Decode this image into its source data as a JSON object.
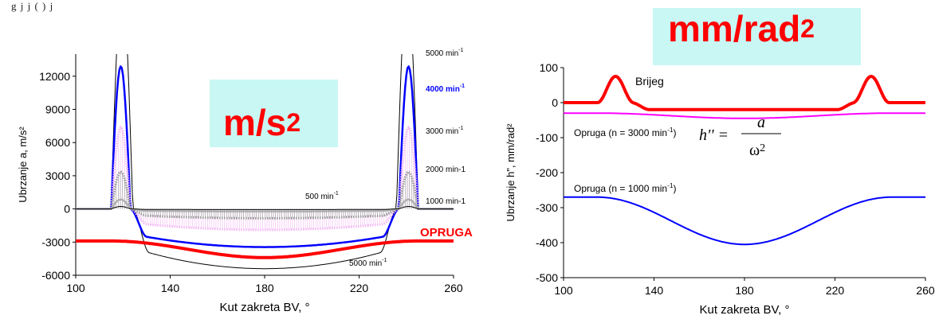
{
  "page": {
    "top_caption": "g j      j                 ( )                    j"
  },
  "chart_data": [
    {
      "type": "line",
      "title": "m/s²",
      "title_main": "m/s",
      "title_sup": "2",
      "title_color": "#ff0000",
      "title_box_color": "#c8f7f4",
      "xlabel": "Kut zakreta BV, °",
      "ylabel": "Ubrzanje a, m/s²",
      "xlim": [
        100,
        260
      ],
      "ylim": [
        -6000,
        14000
      ],
      "xticks": [
        100,
        140,
        180,
        220,
        260
      ],
      "yticks": [
        -6000,
        -3000,
        0,
        3000,
        6000,
        9000,
        12000
      ],
      "grid": false,
      "series": [
        {
          "name": "5000 min⁻¹",
          "label_main": "5000 min",
          "label_sup": "-1",
          "color": "#000000",
          "rise": [
            115,
            124
          ],
          "fall": [
            236,
            245
          ],
          "peak": 20000,
          "trough": -5400,
          "clip": [
            126,
            233
          ],
          "style": "thin"
        },
        {
          "name": "4000 min⁻¹",
          "label_main": "4000 min",
          "label_sup": "-1",
          "color": "#0000ff",
          "rise": [
            115,
            123
          ],
          "fall": [
            237,
            245
          ],
          "peak": 12900,
          "trough": -3450,
          "style": "solid"
        },
        {
          "name": "3000 min⁻¹",
          "label_main": "3000 min",
          "label_sup": "-1",
          "color": "#f2b8f2",
          "rise": [
            115,
            123
          ],
          "fall": [
            237,
            245
          ],
          "peak": 7400,
          "trough": -1900,
          "style": "hatch"
        },
        {
          "name": "2000 min-1",
          "label_main": "2000 min-1",
          "label_sup": "",
          "color": "#9a9a9a",
          "rise": [
            115,
            123
          ],
          "fall": [
            237,
            245
          ],
          "peak": 3350,
          "trough": -850,
          "style": "hatch"
        },
        {
          "name": "1000 min-1",
          "label_main": "1000 min-1",
          "label_sup": "",
          "color": "#b0b0b0",
          "rise": [
            115,
            123
          ],
          "fall": [
            237,
            245
          ],
          "peak": 850,
          "trough": -230,
          "style": "solid"
        },
        {
          "name": "500 min⁻¹",
          "label_main": "500 min",
          "label_sup": "-1",
          "color": "#000000",
          "rise": [
            115,
            123
          ],
          "fall": [
            237,
            245
          ],
          "peak": 220,
          "trough": -60,
          "style": "thin"
        },
        {
          "name": "OPRUGA",
          "color": "#ff0000",
          "type": "spring",
          "base": -2900,
          "trough": -4400,
          "style": "thick"
        }
      ]
    },
    {
      "type": "line",
      "title": "mm/rad²",
      "title_main": "mm/rad",
      "title_sup": "2",
      "title_color": "#ff0000",
      "title_box_color": "#c8f7f4",
      "xlabel": "Kut zakreta BV, °",
      "ylabel": "Ubrzanje h\", mm/rad²",
      "xlim": [
        100,
        260
      ],
      "ylim": [
        -500,
        100
      ],
      "xticks": [
        100,
        140,
        180,
        220,
        260
      ],
      "yticks": [
        -500,
        -400,
        -300,
        -200,
        -100,
        0,
        100
      ],
      "grid": false,
      "formula": "h'' = a / ω²",
      "series": [
        {
          "name": "Brijeg",
          "color": "#ff0000",
          "type": "cam",
          "base": 0,
          "peak": 75,
          "trough": -20,
          "style": "thick"
        },
        {
          "name": "Opruga (n = 3000 min⁻¹)",
          "label_main": "Opruga (n = 3000 min",
          "label_sup": "-1",
          "label_tail": ")",
          "color": "#ff00ff",
          "type": "spring",
          "base": -30,
          "trough": -45,
          "style": "medium"
        },
        {
          "name": "Opruga (n = 1000 min⁻¹)",
          "label_main": "Opruga (n = 1000 min",
          "label_sup": "-1",
          "label_tail": ")",
          "color": "#0000ff",
          "type": "spring",
          "base": -270,
          "trough": -405,
          "style": "medium"
        }
      ]
    }
  ]
}
